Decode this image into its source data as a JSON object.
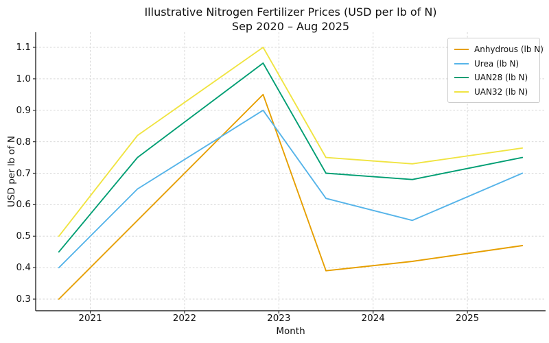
{
  "chart_data": {
    "type": "line",
    "title_line1": "Illustrative Nitrogen Fertilizer Prices (USD per lb of N)",
    "title_line2": "Sep 2020 – Aug 2025",
    "xlabel": "Month",
    "ylabel": "USD per lb of N",
    "x_tick_labels": [
      "2021",
      "2022",
      "2023",
      "2024",
      "2025"
    ],
    "x_tick_months": [
      4,
      16,
      28,
      40,
      52
    ],
    "y_ticks": [
      0.3,
      0.4,
      0.5,
      0.6,
      0.7,
      0.8,
      0.9,
      1.0,
      1.1
    ],
    "xlim_months": [
      -2.95,
      61.95
    ],
    "ylim": [
      0.263,
      1.148
    ],
    "x_dates": [
      "Sep 2020",
      "Jul 2021",
      "Nov 2022",
      "Jul 2023",
      "Jun 2024",
      "Aug 2025"
    ],
    "x_months": [
      0,
      10,
      26,
      34,
      45,
      59
    ],
    "series": [
      {
        "name": "Anhydrous (lb N)",
        "key": "anhydrous",
        "color": "#E69F00",
        "values": [
          0.3,
          0.55,
          0.95,
          0.39,
          0.42,
          0.47
        ]
      },
      {
        "name": "Urea (lb N)",
        "key": "urea",
        "color": "#56B4E9",
        "values": [
          0.4,
          0.65,
          0.9,
          0.62,
          0.55,
          0.7
        ]
      },
      {
        "name": "UAN28 (lb N)",
        "key": "uan28",
        "color": "#009E73",
        "values": [
          0.45,
          0.75,
          1.05,
          0.7,
          0.68,
          0.75
        ]
      },
      {
        "name": "UAN32 (lb N)",
        "key": "uan32",
        "color": "#F0E442",
        "values": [
          0.5,
          0.82,
          1.1,
          0.75,
          0.73,
          0.78
        ]
      }
    ],
    "grid": true,
    "legend_position": "upper right",
    "colors": {
      "background": "#ffffff",
      "grid": "#d6d6d6",
      "spine": "#2b2b2b",
      "text": "#111111",
      "legend_border": "#cccccc"
    }
  }
}
